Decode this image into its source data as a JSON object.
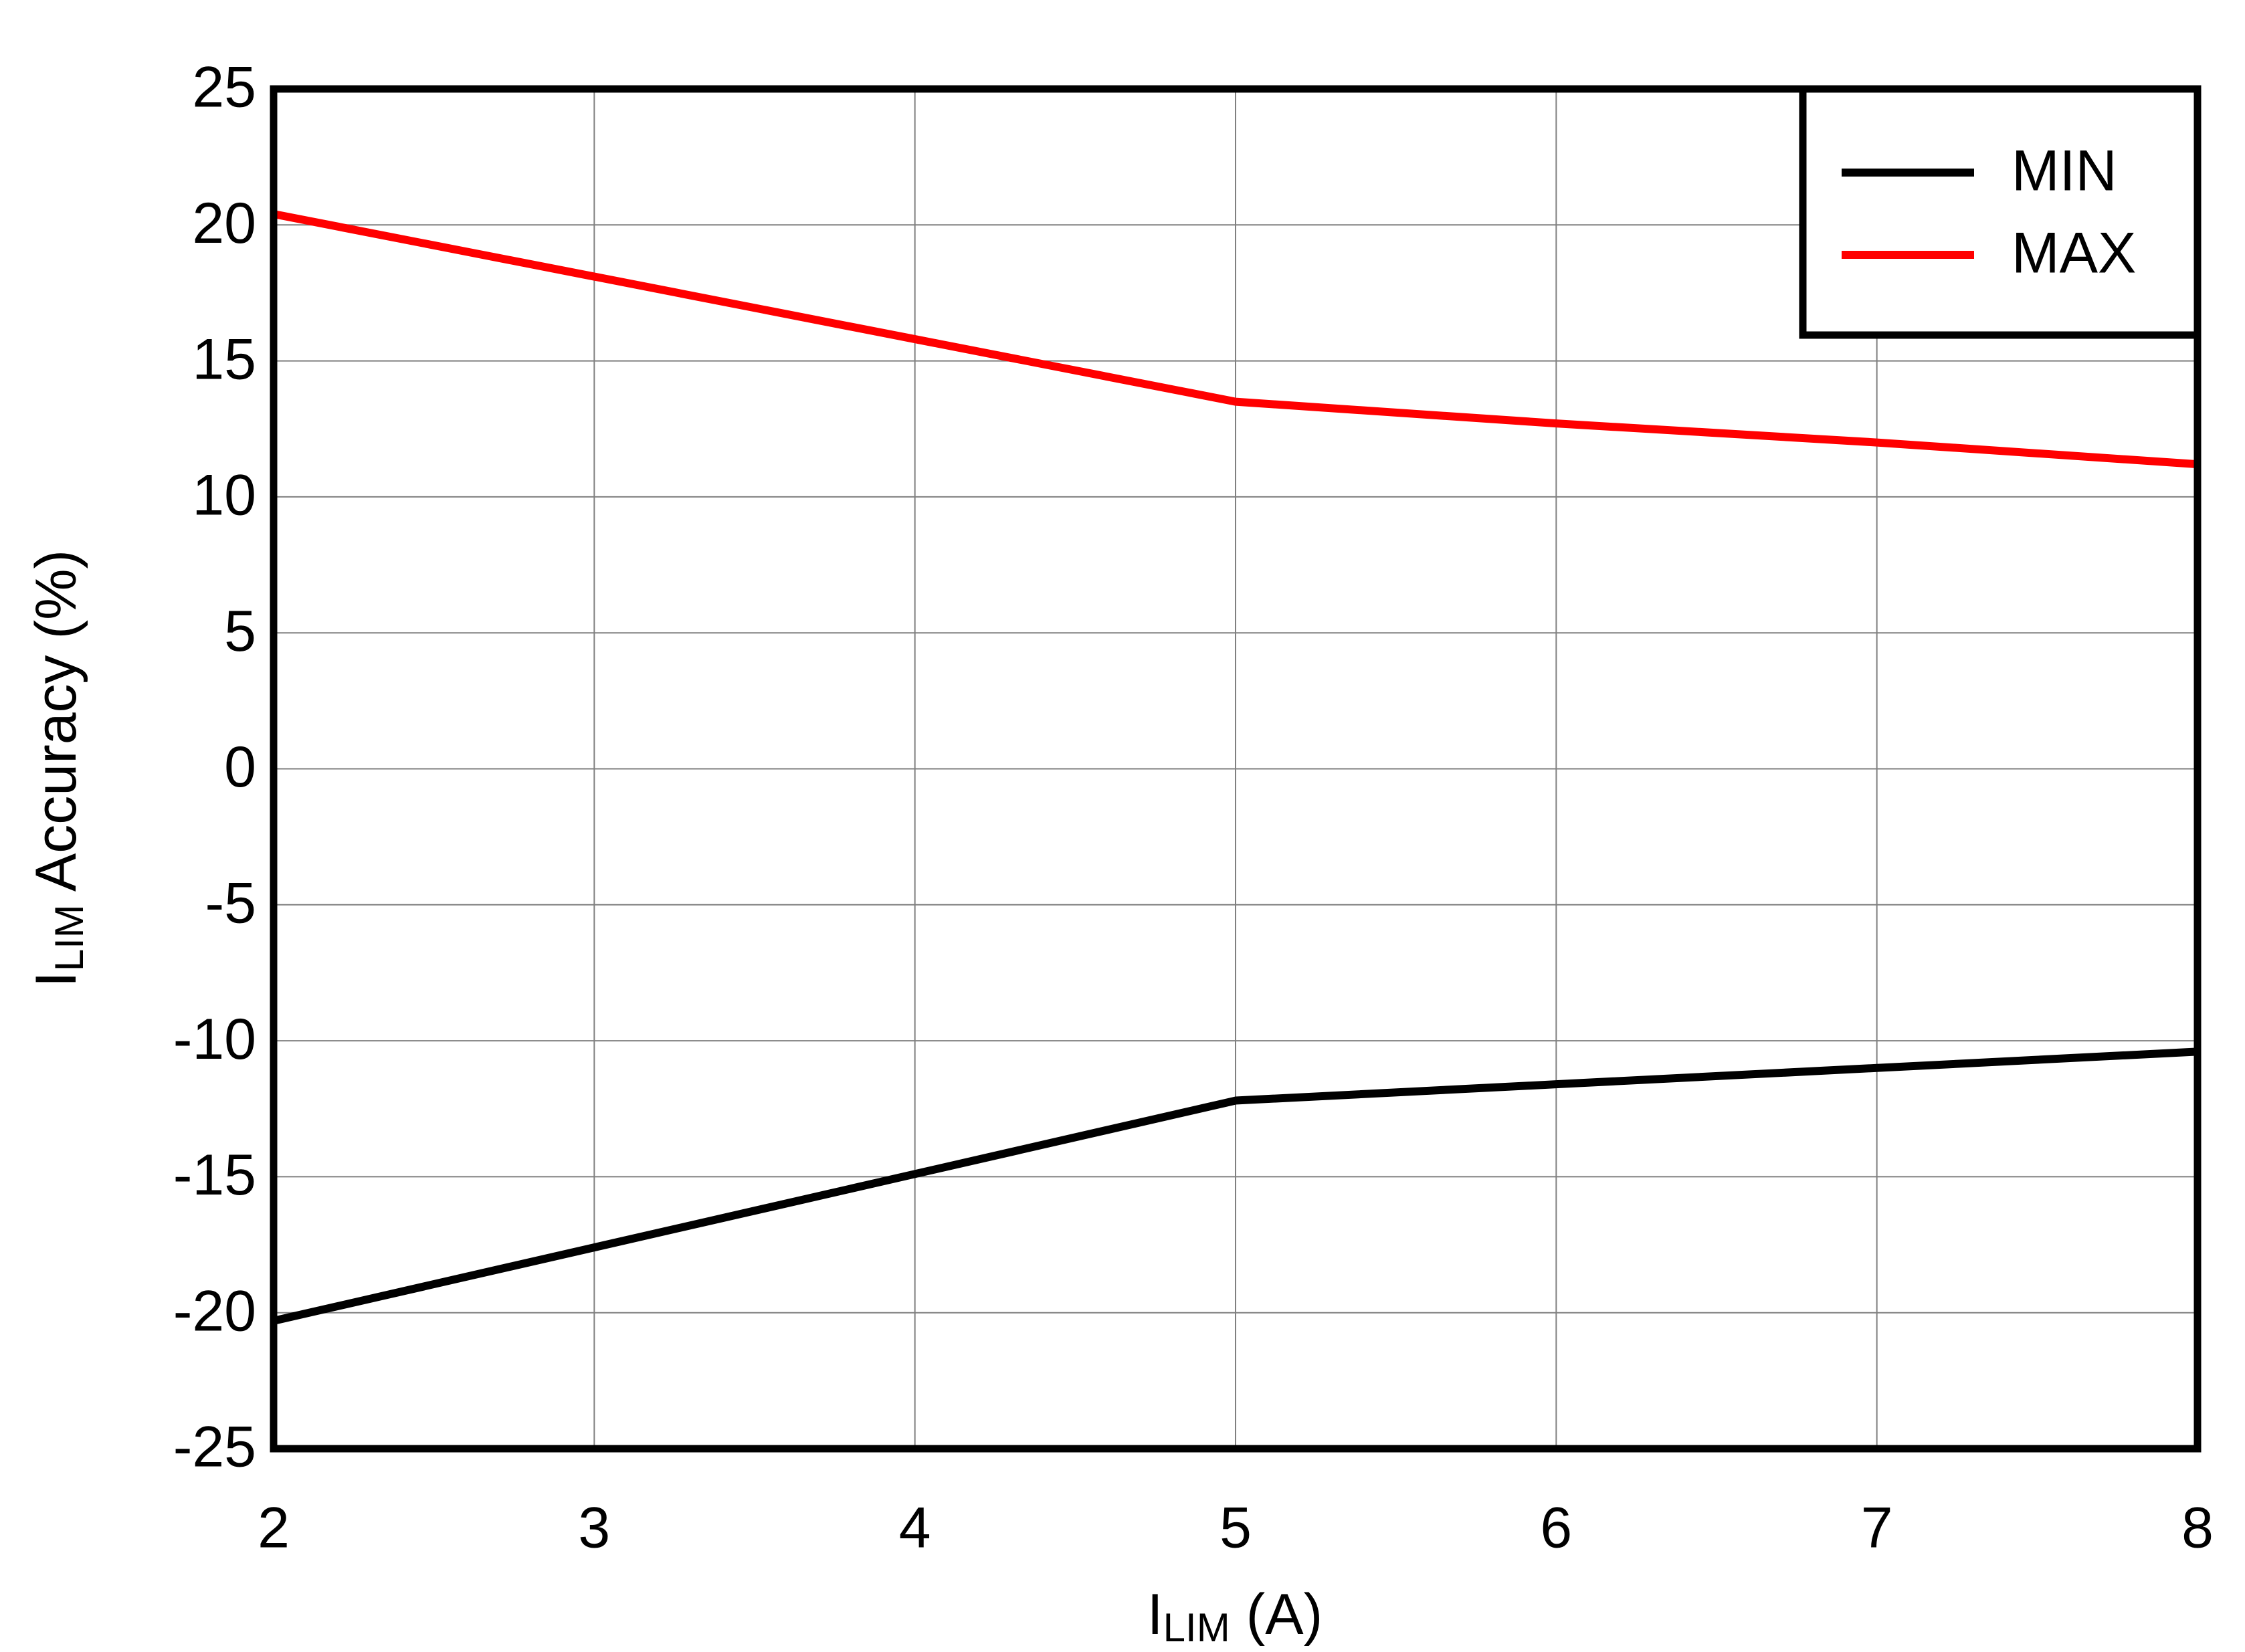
{
  "chart_data": {
    "type": "line",
    "xlabel": {
      "main": "I",
      "sub": "LIM",
      "rest": " (A)"
    },
    "ylabel": {
      "main": "I",
      "sub": "LIM",
      "rest": " Accuracy (%)"
    },
    "x": [
      2,
      3,
      4,
      5,
      6,
      7,
      8
    ],
    "series": [
      {
        "name": "MIN",
        "color": "#000000",
        "values": [
          -20.3,
          -17.6,
          -14.9,
          -12.2,
          -11.6,
          -11.0,
          -10.4
        ]
      },
      {
        "name": "MAX",
        "color": "#ff0000",
        "values": [
          20.4,
          18.1,
          15.8,
          13.5,
          12.7,
          12.0,
          11.2
        ]
      }
    ],
    "xlim": [
      2,
      8
    ],
    "xticks": [
      2,
      3,
      4,
      5,
      6,
      7,
      8
    ],
    "ylim": [
      -25,
      25
    ],
    "yticks": [
      -25,
      -20,
      -15,
      -10,
      -5,
      0,
      5,
      10,
      15,
      20,
      25
    ],
    "grid": true,
    "legend": "upper right"
  }
}
